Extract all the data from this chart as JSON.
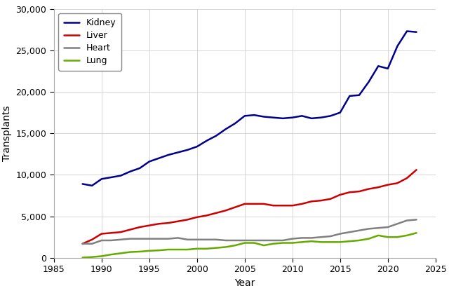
{
  "xlabel": "Year",
  "ylabel": "Transplants",
  "xlim": [
    1985,
    2025
  ],
  "ylim": [
    0,
    30000
  ],
  "yticks": [
    0,
    5000,
    10000,
    15000,
    20000,
    25000,
    30000
  ],
  "xticks": [
    1985,
    1990,
    1995,
    2000,
    2005,
    2010,
    2015,
    2020,
    2025
  ],
  "series": {
    "Kidney": {
      "color": "#00008B",
      "years": [
        1988,
        1989,
        1990,
        1991,
        1992,
        1993,
        1994,
        1995,
        1996,
        1997,
        1998,
        1999,
        2000,
        2001,
        2002,
        2003,
        2004,
        2005,
        2006,
        2007,
        2008,
        2009,
        2010,
        2011,
        2012,
        2013,
        2014,
        2015,
        2016,
        2017,
        2018,
        2019,
        2020,
        2021,
        2022,
        2023
      ],
      "values": [
        8900,
        8700,
        9500,
        9700,
        9900,
        10400,
        10800,
        11600,
        12000,
        12400,
        12700,
        13000,
        13400,
        14100,
        14700,
        15500,
        16200,
        17100,
        17200,
        17000,
        16900,
        16800,
        16900,
        17100,
        16800,
        16900,
        17100,
        17500,
        19500,
        19600,
        21200,
        23100,
        22800,
        25500,
        27300,
        27200
      ]
    },
    "Liver": {
      "color": "#CC0000",
      "years": [
        1988,
        1989,
        1990,
        1991,
        1992,
        1993,
        1994,
        1995,
        1996,
        1997,
        1998,
        1999,
        2000,
        2001,
        2002,
        2003,
        2004,
        2005,
        2006,
        2007,
        2008,
        2009,
        2010,
        2011,
        2012,
        2013,
        2014,
        2015,
        2016,
        2017,
        2018,
        2019,
        2020,
        2021,
        2022,
        2023
      ],
      "values": [
        1700,
        2200,
        2900,
        3000,
        3100,
        3400,
        3700,
        3900,
        4100,
        4200,
        4400,
        4600,
        4900,
        5100,
        5400,
        5700,
        6100,
        6500,
        6500,
        6500,
        6300,
        6300,
        6300,
        6500,
        6800,
        6900,
        7100,
        7600,
        7900,
        8000,
        8300,
        8500,
        8800,
        9000,
        9600,
        10600
      ]
    },
    "Heart": {
      "color": "#808080",
      "years": [
        1988,
        1989,
        1990,
        1991,
        1992,
        1993,
        1994,
        1995,
        1996,
        1997,
        1998,
        1999,
        2000,
        2001,
        2002,
        2003,
        2004,
        2005,
        2006,
        2007,
        2008,
        2009,
        2010,
        2011,
        2012,
        2013,
        2014,
        2015,
        2016,
        2017,
        2018,
        2019,
        2020,
        2021,
        2022,
        2023
      ],
      "values": [
        1700,
        1700,
        2100,
        2100,
        2200,
        2300,
        2300,
        2300,
        2300,
        2300,
        2400,
        2200,
        2200,
        2200,
        2200,
        2100,
        2100,
        2100,
        2100,
        2100,
        2100,
        2100,
        2300,
        2400,
        2400,
        2500,
        2600,
        2900,
        3100,
        3300,
        3500,
        3600,
        3700,
        4100,
        4500,
        4600
      ]
    },
    "Lung": {
      "color": "#66AA00",
      "years": [
        1988,
        1989,
        1990,
        1991,
        1992,
        1993,
        1994,
        1995,
        1996,
        1997,
        1998,
        1999,
        2000,
        2001,
        2002,
        2003,
        2004,
        2005,
        2006,
        2007,
        2008,
        2009,
        2010,
        2011,
        2012,
        2013,
        2014,
        2015,
        2016,
        2017,
        2018,
        2019,
        2020,
        2021,
        2022,
        2023
      ],
      "values": [
        33,
        99,
        200,
        400,
        550,
        700,
        750,
        850,
        900,
        1000,
        1000,
        1000,
        1100,
        1100,
        1200,
        1300,
        1500,
        1800,
        1800,
        1500,
        1700,
        1800,
        1800,
        1900,
        2000,
        1900,
        1900,
        1900,
        2000,
        2100,
        2300,
        2700,
        2500,
        2500,
        2700,
        3000
      ]
    }
  },
  "legend_loc": "upper left",
  "background_color": "#ffffff",
  "grid_color": "#d0d0d0",
  "line_width": 1.8,
  "label_fontsize": 10,
  "tick_fontsize": 9,
  "legend_fontsize": 9
}
